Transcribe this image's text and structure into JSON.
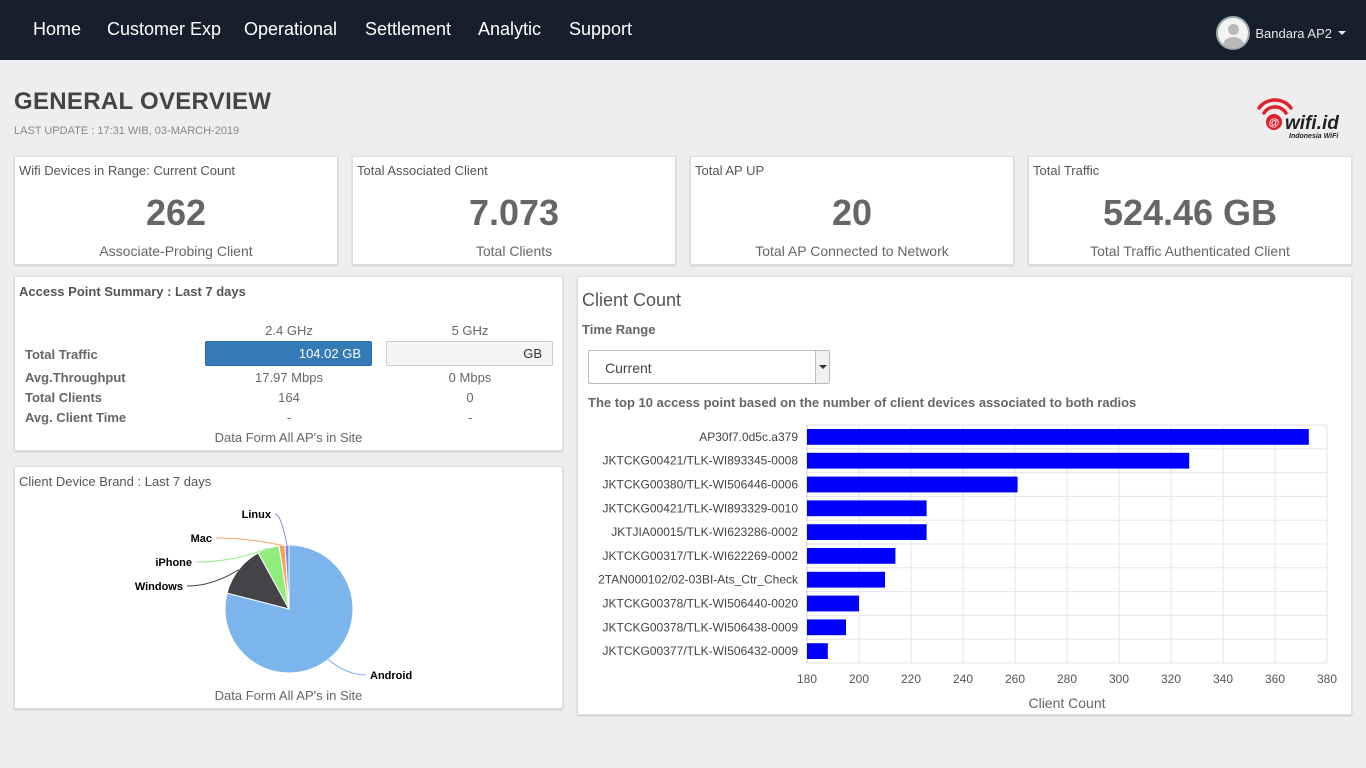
{
  "nav": {
    "items": [
      "Home",
      "Customer Exp",
      "Operational",
      "Settlement",
      "Analytic",
      "Support"
    ],
    "user": "Bandara AP2"
  },
  "header": {
    "title": "GENERAL OVERVIEW",
    "last_update": "LAST UPDATE : 17:31 WIB, 03-MARCH-2019",
    "logo_text": "wifi.id",
    "logo_sub": "Indonesia WiFi"
  },
  "stats": [
    {
      "title": "Wifi Devices in Range: Current Count",
      "value": "262",
      "sub": "Associate-Probing Client"
    },
    {
      "title": "Total Associated Client",
      "value": "7.073",
      "sub": "Total Clients"
    },
    {
      "title": "Total AP UP",
      "value": "20",
      "sub": "Total AP Connected to Network"
    },
    {
      "title": "Total Traffic",
      "value": "524.46 GB",
      "sub": "Total Traffic Authenticated Client"
    }
  ],
  "ap_summary": {
    "title": "Access Point Summary : Last 7 days",
    "col_24": "2.4 GHz",
    "col_5": "5 GHz",
    "rows": [
      {
        "label": "Total Traffic",
        "v24": "104.02 GB",
        "v5": "GB"
      },
      {
        "label": "Avg.Throughput",
        "v24": "17.97 Mbps",
        "v5": "0 Mbps"
      },
      {
        "label": "Total Clients",
        "v24": "164",
        "v5": "0"
      },
      {
        "label": "Avg. Client Time",
        "v24": "-",
        "v5": "-"
      }
    ],
    "footer": "Data Form All AP's in Site",
    "traffic_fill_24": 1.0,
    "traffic_fill_5": 0.0
  },
  "brand": {
    "title": "Client Device Brand : Last 7 days",
    "footer": "Data Form All AP's in Site",
    "chart_data": {
      "type": "pie",
      "labels": [
        "Android",
        "Windows",
        "iPhone",
        "Mac",
        "Linux"
      ],
      "values": [
        79,
        13,
        5.5,
        1.5,
        1
      ],
      "colors": [
        "#7cb5ec",
        "#434348",
        "#90ed7d",
        "#f7a35c",
        "#8085e9"
      ]
    }
  },
  "client_count": {
    "title": "Client Count",
    "range_label": "Time Range",
    "range_value": "Current",
    "description": "The top 10 access point based on the number of client devices associated to both radios",
    "chart_data": {
      "type": "bar",
      "orientation": "horizontal",
      "categories": [
        "AP30f7.0d5c.a379",
        "JKTCKG00421/TLK-WI893345-0008",
        "JKTCKG00380/TLK-WI506446-0006",
        "JKTCKG00421/TLK-WI893329-0010",
        "JKTJIA00015/TLK-WI623286-0002",
        "JKTCKG00317/TLK-WI622269-0002",
        "2TAN000102/02-03BI-Ats_Ctr_Check",
        "JKTCKG00378/TLK-WI506440-0020",
        "JKTCKG00378/TLK-WI506438-0009",
        "JKTCKG00377/TLK-WI506432-0009"
      ],
      "values": [
        373,
        327,
        261,
        226,
        226,
        214,
        210,
        200,
        195,
        188
      ],
      "xlim": [
        180,
        380
      ],
      "xticks": [
        180,
        200,
        220,
        240,
        260,
        280,
        300,
        320,
        340,
        360,
        380
      ],
      "xlabel": "Client Count",
      "color": "#0000ff",
      "grid": true
    }
  }
}
